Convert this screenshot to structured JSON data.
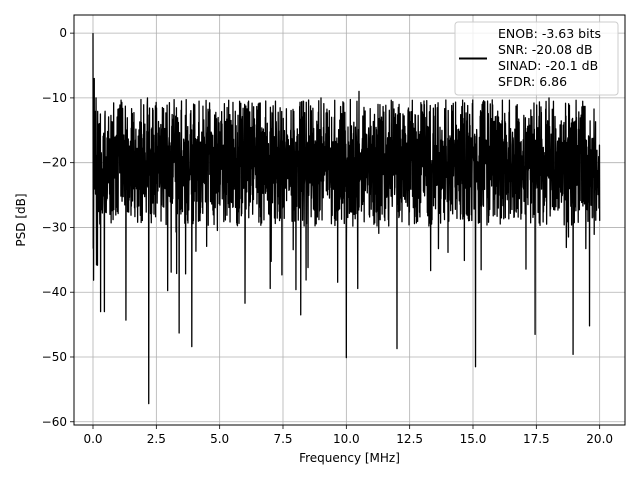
{
  "chart_data": {
    "type": "line",
    "title": "",
    "xlabel": "Frequency [MHz]",
    "ylabel": "PSD [dB]",
    "xlim": [
      -0.75,
      21.0
    ],
    "ylim": [
      -60.5,
      2.8
    ],
    "xticks": [
      0.0,
      2.5,
      5.0,
      7.5,
      10.0,
      12.5,
      15.0,
      17.5,
      20.0
    ],
    "xtick_labels": [
      "0.0",
      "2.5",
      "5.0",
      "7.5",
      "10.0",
      "12.5",
      "15.0",
      "17.5",
      "20.0"
    ],
    "yticks": [
      0,
      -10,
      -20,
      -30,
      -40,
      -50,
      -60
    ],
    "ytick_labels": [
      "0",
      "−10",
      "−20",
      "−30",
      "−40",
      "−50",
      "−60"
    ],
    "grid": true,
    "legend_position": "top-right",
    "line_color": "#000000",
    "series": [
      {
        "legend_lines": [
          "ENOB: -3.63 bits",
          "SNR: -20.08 dB",
          "SINAD: -20.1 dB",
          "SFDR: 6.86"
        ],
        "x_range": [
          0.0,
          20.0
        ],
        "peak": {
          "x": 0.0,
          "y": 0.0
        },
        "noise_floor_mean": -20,
        "noise_band_upper": -13,
        "noise_band_lower": -27,
        "notable_points": [
          {
            "x": 0.0,
            "y": 0.0
          },
          {
            "x": 0.05,
            "y": -7
          },
          {
            "x": 0.12,
            "y": -10
          },
          {
            "x": 0.3,
            "y": -43
          },
          {
            "x": 0.45,
            "y": -43
          },
          {
            "x": 1.3,
            "y": -44.3
          },
          {
            "x": 2.2,
            "y": -57.2
          },
          {
            "x": 2.15,
            "y": -10
          },
          {
            "x": 3.4,
            "y": -46.3
          },
          {
            "x": 3.9,
            "y": -48.4
          },
          {
            "x": 6.0,
            "y": -41.7
          },
          {
            "x": 8.2,
            "y": -43.5
          },
          {
            "x": 9.0,
            "y": -10
          },
          {
            "x": 10.0,
            "y": -50.1
          },
          {
            "x": 10.5,
            "y": -9
          },
          {
            "x": 12.0,
            "y": -48.7
          },
          {
            "x": 15.1,
            "y": -51.5
          },
          {
            "x": 17.45,
            "y": -46.5
          },
          {
            "x": 18.0,
            "y": -10
          },
          {
            "x": 18.95,
            "y": -49.6
          },
          {
            "x": 19.6,
            "y": -45.2
          }
        ]
      }
    ]
  }
}
